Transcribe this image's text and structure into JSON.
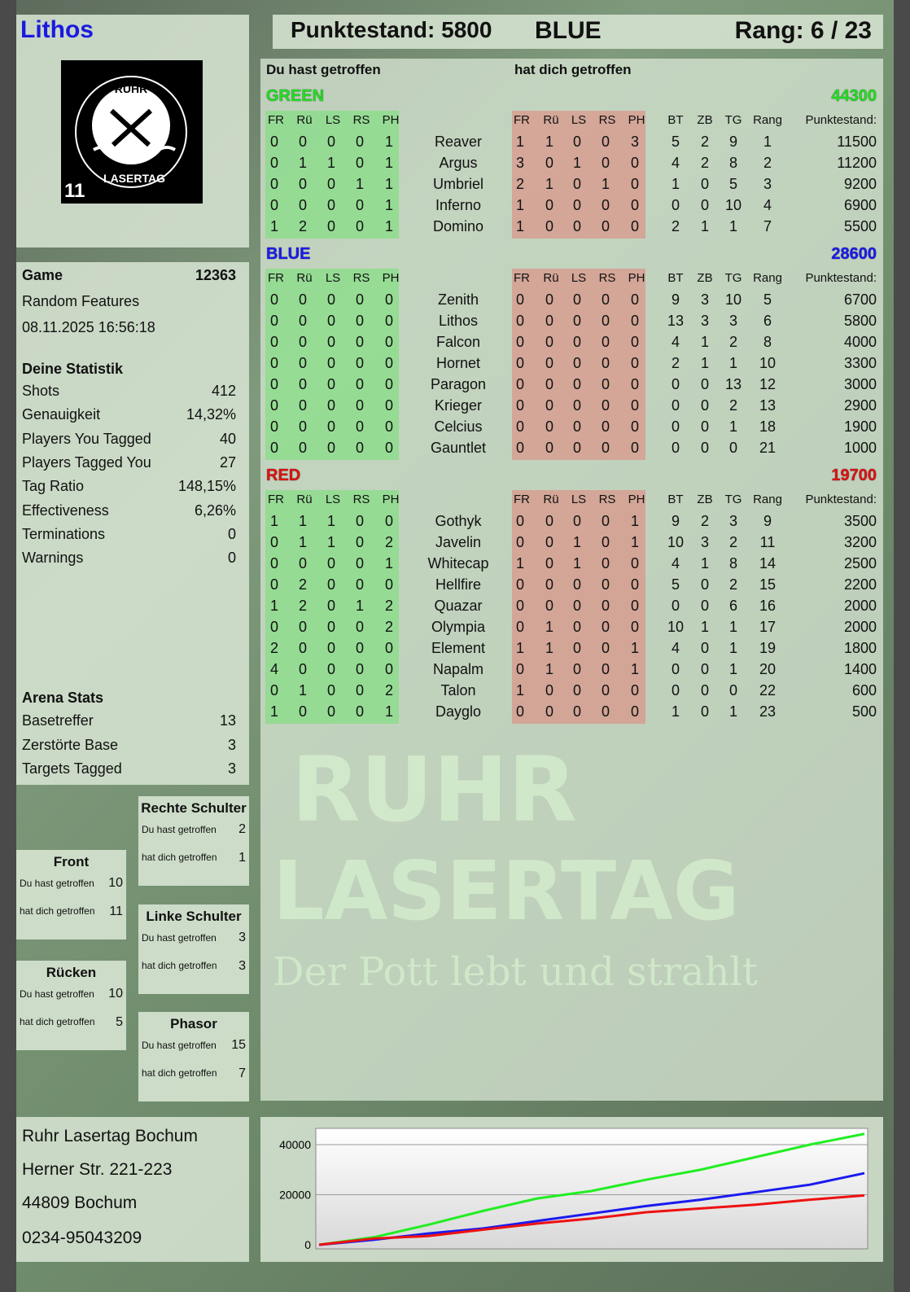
{
  "header": {
    "player": "Lithos",
    "score_label": "Punktestand: 5800",
    "team": "BLUE",
    "rank_label": "Rang: 6 / 23"
  },
  "logo": {
    "text_top": "RUHR",
    "text_bottom": "LASERTAG",
    "number": "11"
  },
  "game": {
    "label": "Game",
    "id": "12363",
    "mode": "Random Features",
    "datetime": "08.11.2025 16:56:18"
  },
  "stats": {
    "title": "Deine Statistik",
    "items": [
      {
        "label": "Shots",
        "value": "412"
      },
      {
        "label": "Genauigkeit",
        "value": "14,32%"
      },
      {
        "label": "Players You Tagged",
        "value": "40"
      },
      {
        "label": "Players Tagged You",
        "value": "27"
      },
      {
        "label": "Tag Ratio",
        "value": "148,15%"
      },
      {
        "label": "Effectiveness",
        "value": "6,26%"
      },
      {
        "label": "Terminations",
        "value": "0"
      },
      {
        "label": "Warnings",
        "value": "0"
      }
    ]
  },
  "arena": {
    "title": "Arena Stats",
    "items": [
      {
        "label": "Basetreffer",
        "value": "13"
      },
      {
        "label": "Zerstörte Base",
        "value": "3"
      },
      {
        "label": "Targets Tagged",
        "value": "3"
      }
    ]
  },
  "zones": [
    {
      "name": "Front",
      "hit_label": "Du hast getroffen",
      "hit": "10",
      "got_label": "hat dich getroffen",
      "got": "11"
    },
    {
      "name": "Rücken",
      "hit_label": "Du hast getroffen",
      "hit": "10",
      "got_label": "hat dich getroffen",
      "got": "5"
    },
    {
      "name": "Rechte Schulter",
      "hit_label": "Du hast getroffen",
      "hit": "2",
      "got_label": "hat dich getroffen",
      "got": "1"
    },
    {
      "name": "Linke Schulter",
      "hit_label": "Du hast getroffen",
      "hit": "3",
      "got_label": "hat dich getroffen",
      "got": "3"
    },
    {
      "name": "Phasor",
      "hit_label": "Du hast getroffen",
      "hit": "15",
      "got_label": "hat dich getroffen",
      "got": "7"
    }
  ],
  "address": {
    "line1": "Ruhr Lasertag Bochum",
    "line2": "Herner Str. 221-223",
    "line3": "44809 Bochum",
    "line4": "0234-95043209"
  },
  "table": {
    "you_hit": "Du hast getroffen",
    "hit_you": "hat dich getroffen",
    "hit_cols": [
      "FR",
      "Rü",
      "LS",
      "RS",
      "PH"
    ],
    "stat_cols": [
      "BT",
      "ZB",
      "TG",
      "Rang"
    ],
    "score_col": "Punktestand:",
    "teams": [
      {
        "name": "GREEN",
        "score": "44300",
        "color": "#22dd22",
        "players": [
          [
            "Reaver",
            [
              0,
              0,
              0,
              0,
              1
            ],
            [
              1,
              1,
              0,
              0,
              3
            ],
            [
              5,
              2,
              9,
              1
            ],
            11500
          ],
          [
            "Argus",
            [
              0,
              1,
              1,
              0,
              1
            ],
            [
              3,
              0,
              1,
              0,
              0
            ],
            [
              4,
              2,
              8,
              2
            ],
            11200
          ],
          [
            "Umbriel",
            [
              0,
              0,
              0,
              1,
              1
            ],
            [
              2,
              1,
              0,
              1,
              0
            ],
            [
              1,
              0,
              5,
              3
            ],
            9200
          ],
          [
            "Inferno",
            [
              0,
              0,
              0,
              0,
              1
            ],
            [
              1,
              0,
              0,
              0,
              0
            ],
            [
              0,
              0,
              10,
              4
            ],
            6900
          ],
          [
            "Domino",
            [
              1,
              2,
              0,
              0,
              1
            ],
            [
              1,
              0,
              0,
              0,
              0
            ],
            [
              2,
              1,
              1,
              7
            ],
            5500
          ]
        ]
      },
      {
        "name": "BLUE",
        "score": "28600",
        "color": "#1a1aee",
        "players": [
          [
            "Zenith",
            [
              0,
              0,
              0,
              0,
              0
            ],
            [
              0,
              0,
              0,
              0,
              0
            ],
            [
              9,
              3,
              10,
              5
            ],
            6700
          ],
          [
            "Lithos",
            [
              0,
              0,
              0,
              0,
              0
            ],
            [
              0,
              0,
              0,
              0,
              0
            ],
            [
              13,
              3,
              3,
              6
            ],
            5800
          ],
          [
            "Falcon",
            [
              0,
              0,
              0,
              0,
              0
            ],
            [
              0,
              0,
              0,
              0,
              0
            ],
            [
              4,
              1,
              2,
              8
            ],
            4000
          ],
          [
            "Hornet",
            [
              0,
              0,
              0,
              0,
              0
            ],
            [
              0,
              0,
              0,
              0,
              0
            ],
            [
              2,
              1,
              1,
              10
            ],
            3300
          ],
          [
            "Paragon",
            [
              0,
              0,
              0,
              0,
              0
            ],
            [
              0,
              0,
              0,
              0,
              0
            ],
            [
              0,
              0,
              13,
              12
            ],
            3000
          ],
          [
            "Krieger",
            [
              0,
              0,
              0,
              0,
              0
            ],
            [
              0,
              0,
              0,
              0,
              0
            ],
            [
              0,
              0,
              2,
              13
            ],
            2900
          ],
          [
            "Celcius",
            [
              0,
              0,
              0,
              0,
              0
            ],
            [
              0,
              0,
              0,
              0,
              0
            ],
            [
              0,
              0,
              1,
              18
            ],
            1900
          ],
          [
            "Gauntlet",
            [
              0,
              0,
              0,
              0,
              0
            ],
            [
              0,
              0,
              0,
              0,
              0
            ],
            [
              0,
              0,
              0,
              21
            ],
            1000
          ]
        ]
      },
      {
        "name": "RED",
        "score": "19700",
        "color": "#dd1111",
        "players": [
          [
            "Gothyk",
            [
              1,
              1,
              1,
              0,
              0
            ],
            [
              0,
              0,
              0,
              0,
              1
            ],
            [
              9,
              2,
              3,
              9
            ],
            3500
          ],
          [
            "Javelin",
            [
              0,
              1,
              1,
              0,
              2
            ],
            [
              0,
              0,
              1,
              0,
              1
            ],
            [
              10,
              3,
              2,
              11
            ],
            3200
          ],
          [
            "Whitecap",
            [
              0,
              0,
              0,
              0,
              1
            ],
            [
              1,
              0,
              1,
              0,
              0
            ],
            [
              4,
              1,
              8,
              14
            ],
            2500
          ],
          [
            "Hellfire",
            [
              0,
              2,
              0,
              0,
              0
            ],
            [
              0,
              0,
              0,
              0,
              0
            ],
            [
              5,
              0,
              2,
              15
            ],
            2200
          ],
          [
            "Quazar",
            [
              1,
              2,
              0,
              1,
              2
            ],
            [
              0,
              0,
              0,
              0,
              0
            ],
            [
              0,
              0,
              6,
              16
            ],
            2000
          ],
          [
            "Olympia",
            [
              0,
              0,
              0,
              0,
              2
            ],
            [
              0,
              1,
              0,
              0,
              0
            ],
            [
              10,
              1,
              1,
              17
            ],
            2000
          ],
          [
            "Element",
            [
              2,
              0,
              0,
              0,
              0
            ],
            [
              1,
              1,
              0,
              0,
              1
            ],
            [
              4,
              0,
              1,
              19
            ],
            1800
          ],
          [
            "Napalm",
            [
              4,
              0,
              0,
              0,
              0
            ],
            [
              0,
              1,
              0,
              0,
              1
            ],
            [
              0,
              0,
              1,
              20
            ],
            1400
          ],
          [
            "Talon",
            [
              0,
              1,
              0,
              0,
              2
            ],
            [
              1,
              0,
              0,
              0,
              0
            ],
            [
              0,
              0,
              0,
              22
            ],
            600
          ],
          [
            "Dayglo",
            [
              1,
              0,
              0,
              0,
              1
            ],
            [
              0,
              0,
              0,
              0,
              0
            ],
            [
              1,
              0,
              1,
              23
            ],
            500
          ]
        ]
      }
    ]
  },
  "watermark": {
    "line1": "RUHR",
    "line2": "LASERTAG",
    "line3": "Der Pott lebt und strahlt"
  },
  "chart_data": {
    "type": "line",
    "ylim": [
      0,
      45000
    ],
    "yticks": [
      "0",
      "20000",
      "40000"
    ],
    "grid": true,
    "x": [
      0,
      1,
      2,
      3,
      4,
      5,
      6,
      7,
      8,
      9,
      10
    ],
    "series": [
      {
        "color": "#22ee22",
        "values": [
          0,
          3000,
          8000,
          13500,
          18500,
          21500,
          26000,
          30000,
          35000,
          40000,
          44300
        ]
      },
      {
        "color": "#1a1aee",
        "values": [
          0,
          2000,
          4500,
          6500,
          9500,
          12500,
          15500,
          18000,
          21000,
          24000,
          28600
        ]
      },
      {
        "color": "#ee1111",
        "values": [
          0,
          2500,
          3500,
          6000,
          8500,
          10500,
          13000,
          14500,
          16000,
          18000,
          19700
        ]
      }
    ]
  }
}
